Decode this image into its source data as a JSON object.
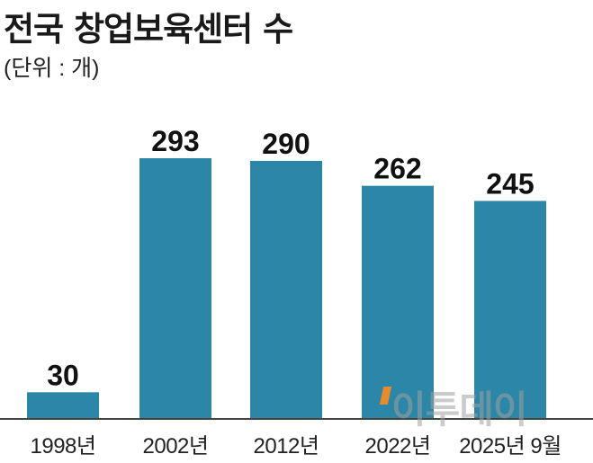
{
  "title": "전국 창업보육센터 수",
  "unit": "(단위 : 개)",
  "watermark": "이투데이",
  "colors": {
    "bar": "#2b86a7",
    "axis": "#444444"
  },
  "chart_data": {
    "type": "bar",
    "title": "전국 창업보육센터 수",
    "unit": "(단위 : 개)",
    "categories": [
      "1998년",
      "2002년",
      "2012년",
      "2022년",
      "2025년 9월"
    ],
    "values": [
      30,
      293,
      290,
      262,
      245
    ],
    "ylim": [
      0,
      300
    ],
    "grid": false,
    "legend": "none"
  }
}
